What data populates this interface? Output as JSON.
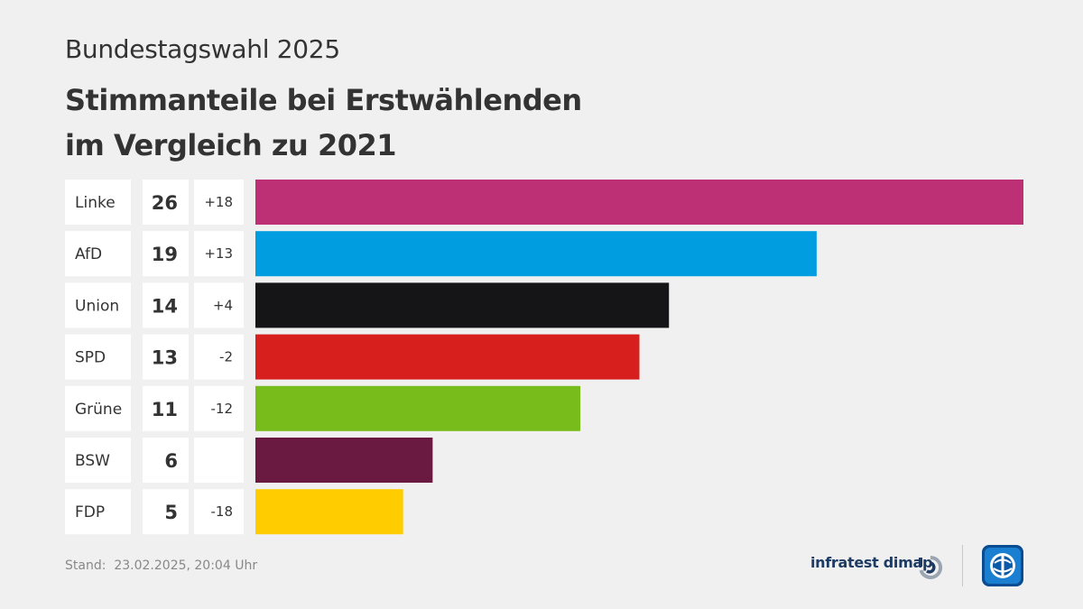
{
  "header": {
    "subtitle": "Bundestagswahl 2025",
    "title_line1": "Stimmanteile bei Erstwählenden",
    "title_line2": "im Vergleich zu 2021"
  },
  "chart_data": {
    "type": "bar",
    "orientation": "horizontal",
    "categories": [
      "Linke",
      "AfD",
      "Union",
      "SPD",
      "Grüne",
      "BSW",
      "FDP"
    ],
    "values": [
      26,
      19,
      14,
      13,
      11,
      6,
      5
    ],
    "changes": [
      "+18",
      "+13",
      "+4",
      "-2",
      "-12",
      "",
      "-18"
    ],
    "colors": [
      "#bd3075",
      "#009ee0",
      "#151518",
      "#d71f1d",
      "#78bc1b",
      "#6a1a41",
      "#ffcc00"
    ],
    "xlim": [
      0,
      26
    ],
    "grid": false,
    "legend": "none"
  },
  "footer": {
    "stand_label": "Stand:",
    "stand_value": "23.02.2025, 20:04 Uhr"
  },
  "branding": {
    "institute": "infratest dimap",
    "icons": [
      "infratest-dimap-logo-icon",
      "tagesschau-logo-icon"
    ]
  }
}
